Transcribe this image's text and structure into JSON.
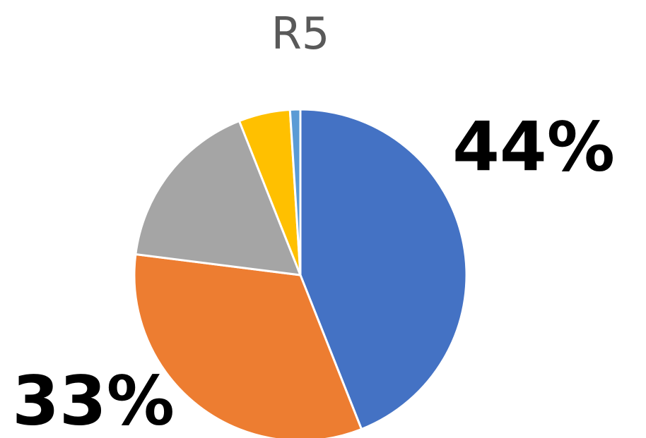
{
  "chart_data": {
    "type": "pie",
    "title": "R5",
    "values": [
      44,
      33,
      17,
      5,
      1
    ],
    "value_labels": [
      "44%",
      "33%",
      null,
      null,
      null
    ],
    "colors": [
      "#4472c4",
      "#ed7d31",
      "#a5a5a5",
      "#ffc000",
      "#5b9bd5"
    ]
  }
}
